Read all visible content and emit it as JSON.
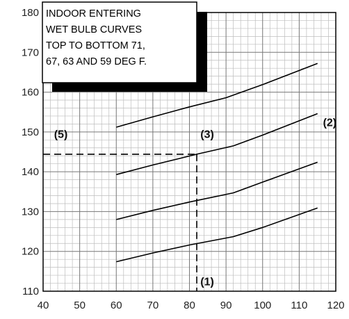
{
  "chart_data": {
    "type": "line",
    "title": "",
    "xlabel": "",
    "ylabel": "",
    "xlim": [
      40,
      120
    ],
    "ylim": [
      110,
      180
    ],
    "x_ticks": [
      40,
      50,
      60,
      70,
      80,
      90,
      100,
      110,
      120
    ],
    "y_ticks": [
      110,
      120,
      130,
      140,
      150,
      160,
      170,
      180
    ],
    "grid": true,
    "note_lines": [
      "INDOOR ENTERING",
      "WET BULB CURVES",
      "TOP TO BOTTOM 71,",
      "67, 63 AND 59 DEG F."
    ],
    "series": [
      {
        "x": [
          60,
          70,
          80,
          90,
          100,
          115
        ],
        "y": [
          151.2,
          153.8,
          156.3,
          158.6,
          161.9,
          167.2
        ]
      },
      {
        "x": [
          60,
          70,
          82,
          92,
          100,
          115
        ],
        "y": [
          139.3,
          141.7,
          144.4,
          146.5,
          149.2,
          154.6
        ]
      },
      {
        "x": [
          60,
          70,
          80,
          92,
          100,
          115
        ],
        "y": [
          128.0,
          130.3,
          132.4,
          134.7,
          137.4,
          142.4
        ]
      },
      {
        "x": [
          60,
          70,
          80,
          92,
          100,
          115
        ],
        "y": [
          117.4,
          119.6,
          121.6,
          123.7,
          126.0,
          130.9
        ]
      }
    ],
    "reference_lines": {
      "x": 82,
      "y": 144.4
    },
    "markers": [
      {
        "label": "(1)",
        "x": 83,
        "y": 111.5
      },
      {
        "label": "(2)",
        "x": 116.5,
        "y": 151.5
      },
      {
        "label": "(3)",
        "x": 83,
        "y": 148.5
      },
      {
        "label": "(5)",
        "x": 43,
        "y": 148.5
      }
    ]
  }
}
